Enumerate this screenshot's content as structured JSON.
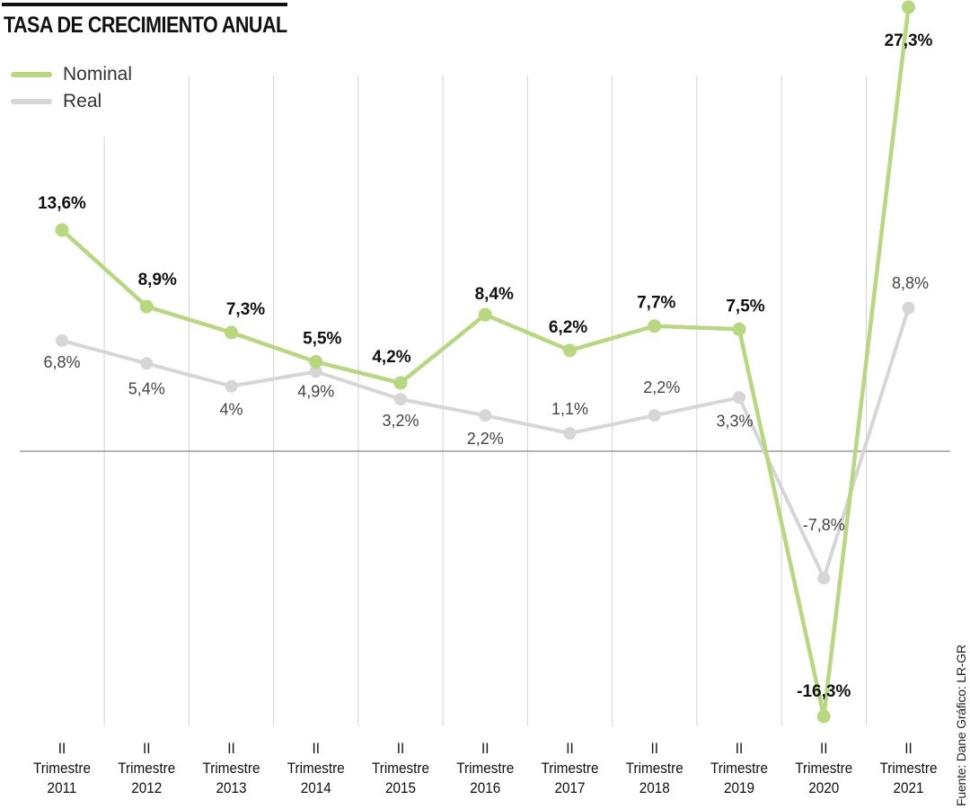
{
  "header": {
    "title": "TASA DE CRECIMIENTO ANUAL"
  },
  "credit": "Fuente: Dane   Gráfico: LR-GR",
  "colors": {
    "nominal": "#b7d87f",
    "real": "#d6d6d6",
    "grid": "#d3d3d3",
    "zero_line": "#888888"
  },
  "chart_data": {
    "type": "line",
    "title": "TASA DE CRECIMIENTO ANUAL",
    "categories": [
      [
        "II",
        "Trimestre",
        "2011"
      ],
      [
        "II",
        "Trimestre",
        "2012"
      ],
      [
        "II",
        "Trimestre",
        "2013"
      ],
      [
        "II",
        "Trimestre",
        "2014"
      ],
      [
        "II",
        "Trimestre",
        "2015"
      ],
      [
        "II",
        "Trimestre",
        "2016"
      ],
      [
        "II",
        "Trimestre",
        "2017"
      ],
      [
        "II",
        "Trimestre",
        "2018"
      ],
      [
        "II",
        "Trimestre",
        "2019"
      ],
      [
        "II",
        "Trimestre",
        "2020"
      ],
      [
        "II",
        "Trimestre",
        "2021"
      ]
    ],
    "series": [
      {
        "name": "Nominal",
        "values": [
          13.6,
          8.9,
          7.3,
          5.5,
          4.2,
          8.4,
          6.2,
          7.7,
          7.5,
          -16.3,
          27.3
        ],
        "labels": [
          "13,6%",
          "8,9%",
          "7,3%",
          "5,5%",
          "4,2%",
          "8,4%",
          "6,2%",
          "7,7%",
          "7,5%",
          "-16,3%",
          "27,3%"
        ]
      },
      {
        "name": "Real",
        "values": [
          6.8,
          5.4,
          4.0,
          4.9,
          3.2,
          2.2,
          1.1,
          2.2,
          3.3,
          -7.8,
          8.8
        ],
        "labels": [
          "6,8%",
          "5,4%",
          "4%",
          "4,9%",
          "3,2%",
          "2,2%",
          "1,1%",
          "2,2%",
          "3,3%",
          "-7,8%",
          "8,8%"
        ]
      }
    ],
    "ylim": [
      -16.3,
      27.3
    ],
    "grid": true,
    "legend": "top-left",
    "xlabel": "",
    "ylabel": ""
  }
}
